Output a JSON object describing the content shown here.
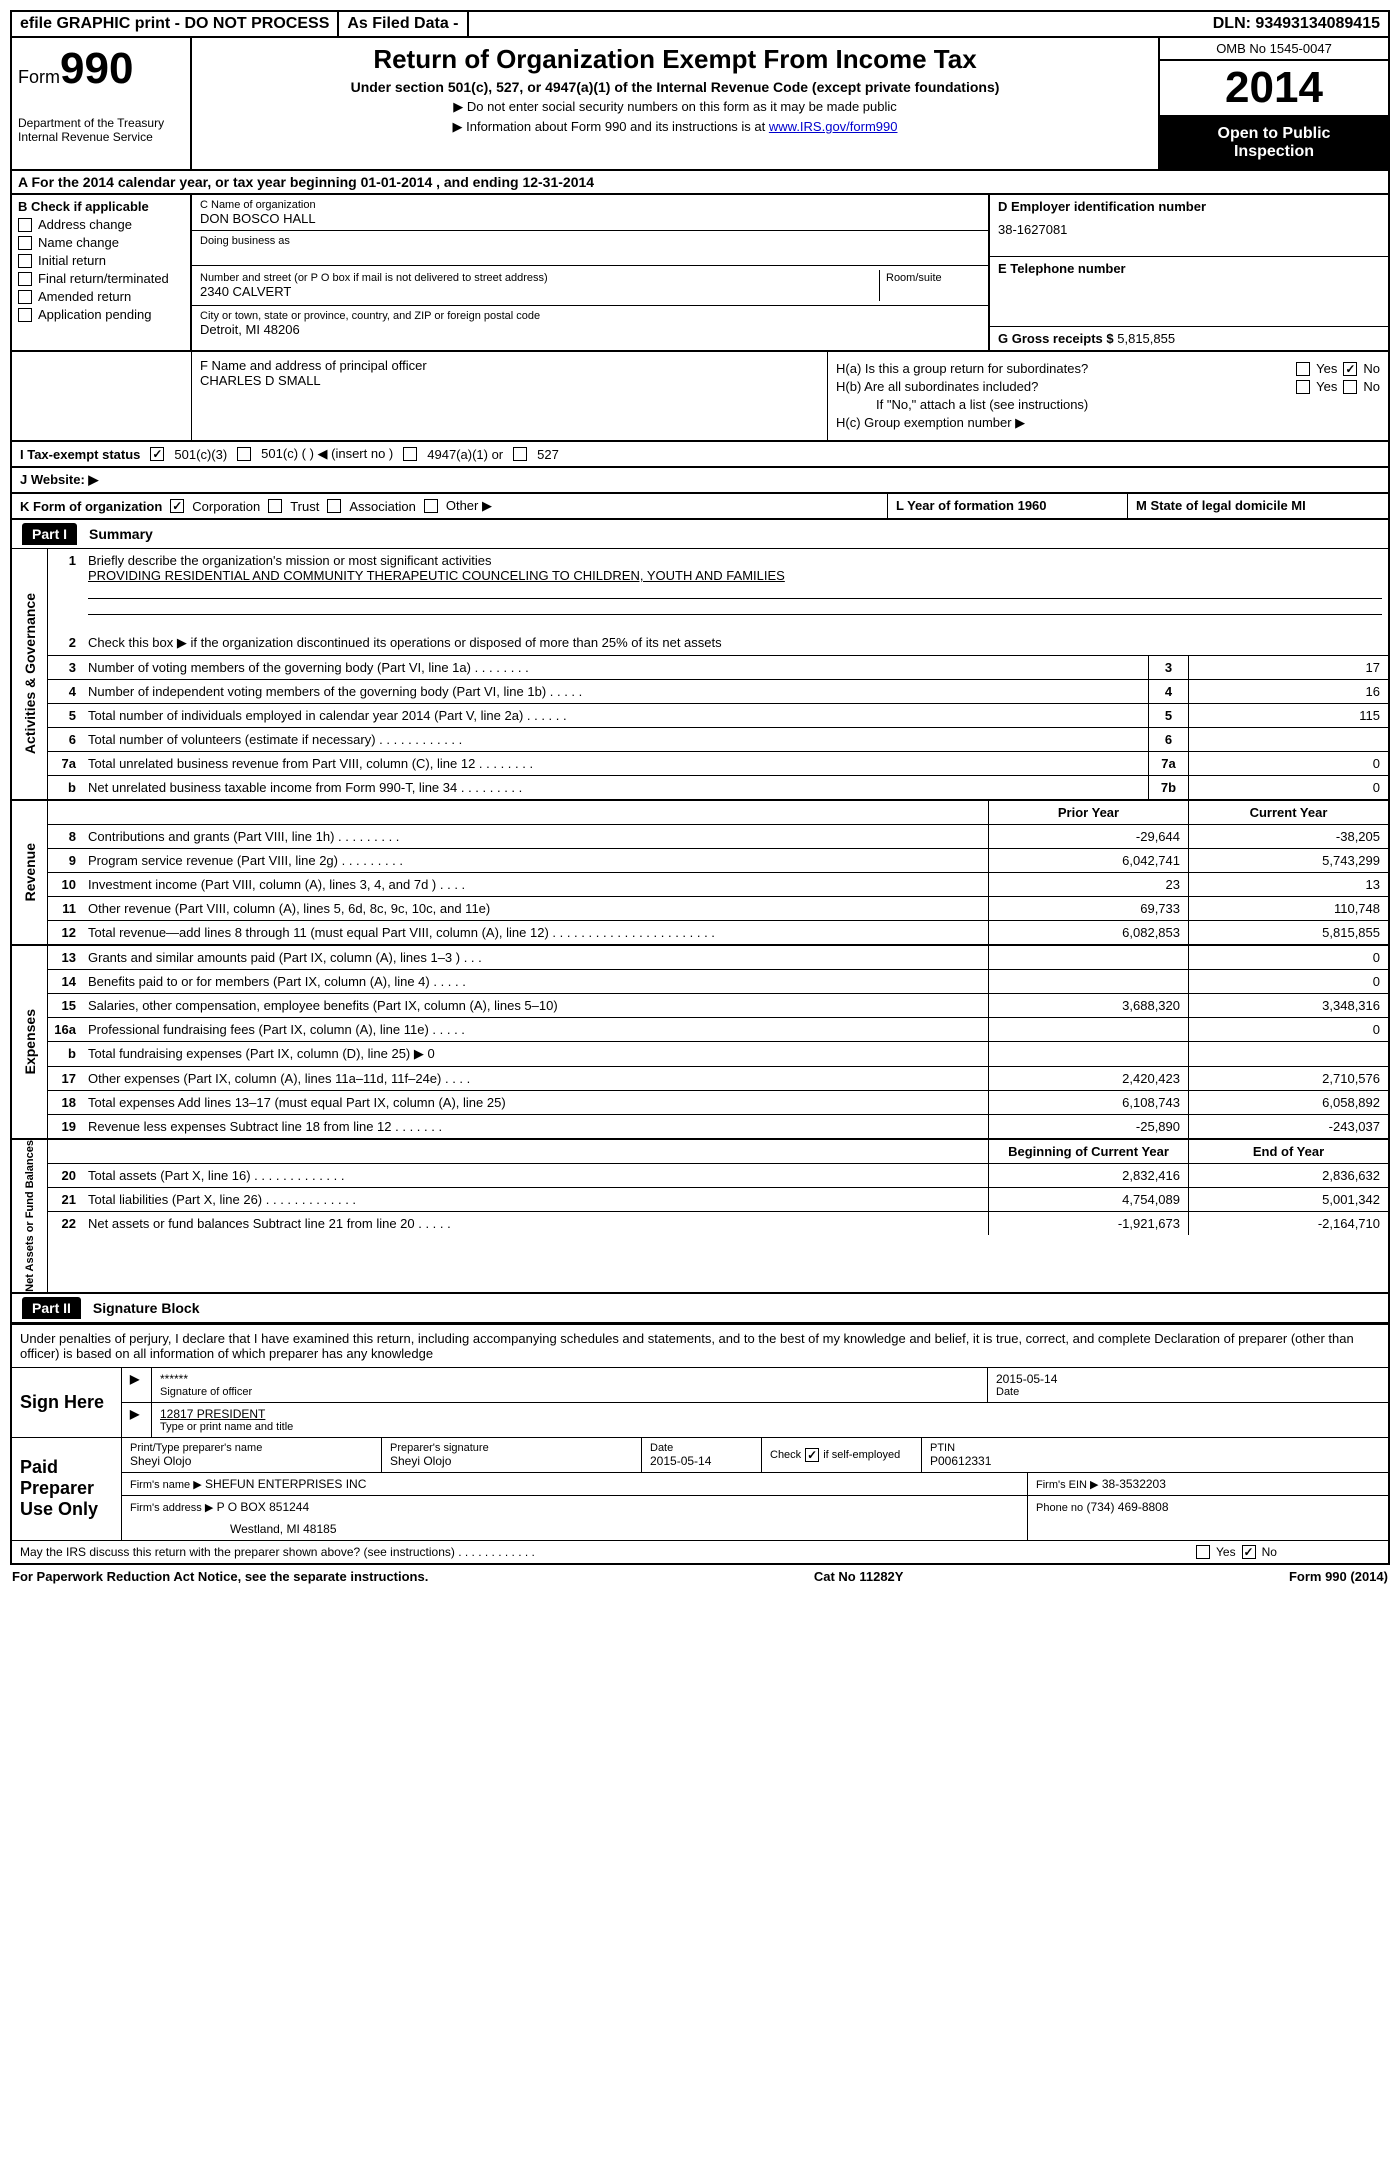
{
  "topbar": {
    "efile": "efile GRAPHIC print - DO NOT PROCESS",
    "asfiled": "As Filed Data -",
    "dln_label": "DLN:",
    "dln": "93493134089415"
  },
  "header": {
    "form_word": "Form",
    "form_num": "990",
    "dept1": "Department of the Treasury",
    "dept2": "Internal Revenue Service",
    "title": "Return of Organization Exempt From Income Tax",
    "subtitle": "Under section 501(c), 527, or 4947(a)(1) of the Internal Revenue Code (except private foundations)",
    "note1": "▶ Do not enter social security numbers on this form as it may be made public",
    "note2_pre": "▶ Information about Form 990 and its instructions is at ",
    "note2_link": "www.IRS.gov/form990",
    "omb": "OMB No 1545-0047",
    "year": "2014",
    "open1": "Open to Public",
    "open2": "Inspection"
  },
  "rowA": "A  For the 2014 calendar year, or tax year beginning 01-01-2014     , and ending 12-31-2014",
  "colB": {
    "label": "B  Check if applicable",
    "items": [
      "Address change",
      "Name change",
      "Initial return",
      "Final return/terminated",
      "Amended return",
      "Application pending"
    ]
  },
  "colC": {
    "name_label": "C Name of organization",
    "name": "DON BOSCO HALL",
    "dba_label": "Doing business as",
    "addr_label": "Number and street (or P O  box if mail is not delivered to street address)",
    "room_label": "Room/suite",
    "addr": "2340 CALVERT",
    "city_label": "City or town, state or province, country, and ZIP or foreign postal code",
    "city": "Detroit, MI  48206"
  },
  "colD": {
    "label": "D Employer identification number",
    "val": "38-1627081"
  },
  "colE": {
    "label": "E Telephone number",
    "val": ""
  },
  "colG": {
    "label": "G Gross receipts $",
    "val": "5,815,855"
  },
  "colF": {
    "label": "F   Name and address of principal officer",
    "val": "CHARLES D SMALL"
  },
  "colH": {
    "ha": "H(a)  Is this a group return for subordinates?",
    "hb": "H(b)  Are all subordinates included?",
    "hb_note": "If \"No,\" attach a list  (see instructions)",
    "hc": "H(c)   Group exemption number ▶",
    "yes": "Yes",
    "no": "No"
  },
  "rowI": {
    "label": "I   Tax-exempt status",
    "o1": "501(c)(3)",
    "o2": "501(c) (    ) ◀ (insert no )",
    "o3": "4947(a)(1) or",
    "o4": "527"
  },
  "rowJ": "J   Website: ▶",
  "rowK": {
    "k": "K Form of organization",
    "corp": "Corporation",
    "trust": "Trust",
    "assoc": "Association",
    "other": "Other ▶",
    "l": "L Year of formation  1960",
    "m": "M State of legal domicile  MI"
  },
  "part1": {
    "hdr": "Part I",
    "title": "Summary",
    "l1": "Briefly describe the organization's mission or most significant activities",
    "mission": "PROVIDING RESIDENTIAL AND COMMUNITY THERAPEUTIC COUNCELING TO CHILDREN, YOUTH AND FAMILIES",
    "l2": "Check this box ▶       if the organization discontinued its operations or disposed of more than 25% of its net assets",
    "lines_ag": [
      {
        "n": "3",
        "d": "Number of voting members of the governing body (Part VI, line 1a)   .   .   .   .   .   .   .   .",
        "b": "3",
        "v": "17"
      },
      {
        "n": "4",
        "d": "Number of independent voting members of the governing body (Part VI, line 1b)    .   .   .   .   .",
        "b": "4",
        "v": "16"
      },
      {
        "n": "5",
        "d": "Total number of individuals employed in calendar year 2014 (Part V, line 2a)   .   .   .   .   .   .",
        "b": "5",
        "v": "115"
      },
      {
        "n": "6",
        "d": "Total number of volunteers (estimate if necessary)    .   .   .   .   .   .   .   .   .   .   .   .",
        "b": "6",
        "v": ""
      },
      {
        "n": "7a",
        "d": "Total unrelated business revenue from Part VIII, column (C), line 12   .   .   .   .   .   .   .   .",
        "b": "7a",
        "v": "0"
      },
      {
        "n": "b",
        "d": "Net unrelated business taxable income from Form 990-T, line 34   .   .   .   .   .   .   .   .   .",
        "b": "7b",
        "v": "0"
      }
    ],
    "col_prior": "Prior Year",
    "col_curr": "Current Year",
    "revenue": [
      {
        "n": "8",
        "d": "Contributions and grants (Part VIII, line 1h)   .   .   .   .   .   .   .   .   .",
        "p": "-29,644",
        "c": "-38,205"
      },
      {
        "n": "9",
        "d": "Program service revenue (Part VIII, line 2g)   .   .   .   .   .   .   .   .   .",
        "p": "6,042,741",
        "c": "5,743,299"
      },
      {
        "n": "10",
        "d": "Investment income (Part VIII, column (A), lines 3, 4, and 7d )    .   .   .   .",
        "p": "23",
        "c": "13"
      },
      {
        "n": "11",
        "d": "Other revenue (Part VIII, column (A), lines 5, 6d, 8c, 9c, 10c, and 11e)",
        "p": "69,733",
        "c": "110,748"
      },
      {
        "n": "12",
        "d": "Total revenue—add lines 8 through 11 (must equal Part VIII, column (A), line 12)   .   .   .   .   .   .   .   .   .   .   .   .   .   .   .   .   .   .   .   .   .   .   .",
        "p": "6,082,853",
        "c": "5,815,855"
      }
    ],
    "expenses": [
      {
        "n": "13",
        "d": "Grants and similar amounts paid (Part IX, column (A), lines 1–3 )   .   .   .",
        "p": "",
        "c": "0"
      },
      {
        "n": "14",
        "d": "Benefits paid to or for members (Part IX, column (A), line 4)   .   .   .   .   .",
        "p": "",
        "c": "0"
      },
      {
        "n": "15",
        "d": "Salaries, other compensation, employee benefits (Part IX, column (A), lines 5–10)",
        "p": "3,688,320",
        "c": "3,348,316"
      },
      {
        "n": "16a",
        "d": "Professional fundraising fees (Part IX, column (A), line 11e)   .   .   .   .   .",
        "p": "",
        "c": "0"
      },
      {
        "n": "b",
        "d": "Total fundraising expenses (Part IX, column (D), line 25) ▶ 0",
        "p": "",
        "c": ""
      },
      {
        "n": "17",
        "d": "Other expenses (Part IX, column (A), lines 11a–11d, 11f–24e)   .   .   .   .",
        "p": "2,420,423",
        "c": "2,710,576"
      },
      {
        "n": "18",
        "d": "Total expenses  Add lines 13–17 (must equal Part IX, column (A), line 25)",
        "p": "6,108,743",
        "c": "6,058,892"
      },
      {
        "n": "19",
        "d": "Revenue less expenses  Subtract line 18 from line 12   .   .   .   .   .   .   .",
        "p": "-25,890",
        "c": "-243,037"
      }
    ],
    "col_begin": "Beginning of Current Year",
    "col_end": "End of Year",
    "netassets": [
      {
        "n": "20",
        "d": "Total assets (Part X, line 16)   .   .   .   .   .   .   .   .   .   .   .   .   .",
        "p": "2,832,416",
        "c": "2,836,632"
      },
      {
        "n": "21",
        "d": "Total liabilities (Part X, line 26)   .   .   .   .   .   .   .   .   .   .   .   .   .",
        "p": "4,754,089",
        "c": "5,001,342"
      },
      {
        "n": "22",
        "d": "Net assets or fund balances  Subtract line 21 from line 20   .   .   .   .   .",
        "p": "-1,921,673",
        "c": "-2,164,710"
      }
    ]
  },
  "vlabels": {
    "ag": "Activities & Governance",
    "rev": "Revenue",
    "exp": "Expenses",
    "net": "Net Assets or Fund Balances"
  },
  "part2": {
    "hdr": "Part II",
    "title": "Signature Block",
    "decl": "Under penalties of perjury, I declare that I have examined this return, including accompanying schedules and statements, and to the best of my knowledge and belief, it is true, correct, and complete  Declaration of preparer (other than officer) is based on all information of which preparer has any knowledge",
    "sign_here": "Sign Here",
    "sig_stars": "******",
    "sig_date": "2015-05-14",
    "sig_of_officer": "Signature of officer",
    "date_label": "Date",
    "officer_name": "12817 PRESIDENT",
    "type_name": "Type or print name and title",
    "paid_prep": "Paid Preparer Use Only",
    "prep_name_label": "Print/Type preparer's name",
    "prep_name": "Sheyi Olojo",
    "prep_sig_label": "Preparer's signature",
    "prep_sig": "Sheyi Olojo",
    "prep_date_label": "Date",
    "prep_date": "2015-05-14",
    "check_self": "Check         if self-employed",
    "ptin_label": "PTIN",
    "ptin": "P00612331",
    "firm_name_label": "Firm's name    ▶",
    "firm_name": "SHEFUN ENTERPRISES INC",
    "firm_ein_label": "Firm's EIN ▶",
    "firm_ein": "38-3532203",
    "firm_addr_label": "Firm's address ▶",
    "firm_addr1": "P O BOX 851244",
    "firm_addr2": "Westland, MI  48185",
    "phone_label": "Phone no",
    "phone": "(734) 469-8808",
    "irs_discuss": "May the IRS discuss this return with the preparer shown above? (see instructions)   .   .   .   .   .   .   .   .   .   .   .   .",
    "yes": "Yes",
    "no": "No"
  },
  "footer": {
    "left": "For Paperwork Reduction Act Notice, see the separate instructions.",
    "mid": "Cat No 11282Y",
    "right": "Form 990 (2014)"
  }
}
